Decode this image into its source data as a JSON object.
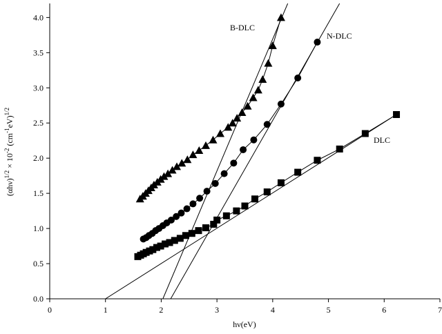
{
  "chart_data": {
    "type": "scatter",
    "x_label": "hν(eV)",
    "y_label": [
      "(αhν)",
      "1/2",
      " × 10",
      "-2",
      " (cm",
      "-1",
      "eV)",
      "1/2"
    ],
    "xlim": [
      0,
      7
    ],
    "ylim": [
      0,
      4.2
    ],
    "xticks": [
      0,
      1,
      2,
      3,
      4,
      5,
      6,
      7
    ],
    "yticks": [
      {
        "value": 0,
        "label": "0.0"
      },
      {
        "value": 0.5,
        "label": "0.5"
      },
      {
        "value": 1,
        "label": "1.0"
      },
      {
        "value": 1.5,
        "label": "1.5"
      },
      {
        "value": 2,
        "label": "2.0"
      },
      {
        "value": 2.5,
        "label": "2.5"
      },
      {
        "value": 3,
        "label": "3.0"
      },
      {
        "value": 3.5,
        "label": "3.5"
      },
      {
        "value": 4,
        "label": "4.0"
      }
    ],
    "series": [
      {
        "name": "B-DLC",
        "color": "#000000",
        "marker": "triangle",
        "x": [
          1.62,
          1.67,
          1.72,
          1.77,
          1.82,
          1.87,
          1.93,
          1.99,
          2.05,
          2.12,
          2.2,
          2.28,
          2.37,
          2.47,
          2.57,
          2.68,
          2.8,
          2.93,
          3.06,
          3.2,
          3.28,
          3.36,
          3.45,
          3.55,
          3.65,
          3.74,
          3.82,
          3.92,
          4.0,
          4.15
        ],
        "values": [
          1.42,
          1.46,
          1.5,
          1.54,
          1.58,
          1.62,
          1.66,
          1.7,
          1.74,
          1.78,
          1.83,
          1.88,
          1.93,
          1.98,
          2.05,
          2.11,
          2.18,
          2.26,
          2.35,
          2.44,
          2.5,
          2.57,
          2.65,
          2.74,
          2.86,
          2.97,
          3.12,
          3.35,
          3.6,
          4.0
        ],
        "fit": {
          "x": [
            2.03,
            4.27
          ],
          "values": [
            0,
            4.2
          ]
        }
      },
      {
        "name": "N-DLC",
        "color": "#000000",
        "marker": "circle",
        "x": [
          1.68,
          1.73,
          1.78,
          1.84,
          1.9,
          1.96,
          2.03,
          2.1,
          2.18,
          2.27,
          2.36,
          2.46,
          2.57,
          2.69,
          2.82,
          2.97,
          3.13,
          3.3,
          3.47,
          3.66,
          3.9,
          4.15,
          4.45,
          4.8
        ],
        "values": [
          0.85,
          0.87,
          0.9,
          0.93,
          0.97,
          1.0,
          1.04,
          1.08,
          1.12,
          1.17,
          1.22,
          1.28,
          1.35,
          1.43,
          1.53,
          1.64,
          1.78,
          1.93,
          2.12,
          2.26,
          2.48,
          2.77,
          3.14,
          3.65
        ],
        "fit": {
          "x": [
            2.17,
            5.2
          ],
          "values": [
            0,
            4.2
          ]
        }
      },
      {
        "name": "DLC",
        "color": "#000000",
        "marker": "square",
        "x": [
          1.58,
          1.63,
          1.68,
          1.73,
          1.79,
          1.85,
          1.92,
          1.99,
          2.07,
          2.15,
          2.24,
          2.34,
          2.44,
          2.55,
          2.67,
          2.8,
          2.94,
          3.0,
          3.17,
          3.35,
          3.5,
          3.68,
          3.9,
          4.15,
          4.45,
          4.8,
          5.2,
          5.66,
          6.22
        ],
        "values": [
          0.6,
          0.62,
          0.64,
          0.66,
          0.68,
          0.7,
          0.73,
          0.75,
          0.78,
          0.8,
          0.83,
          0.86,
          0.9,
          0.93,
          0.97,
          1.01,
          1.06,
          1.12,
          1.18,
          1.25,
          1.32,
          1.42,
          1.52,
          1.65,
          1.8,
          1.97,
          2.13,
          2.35,
          2.62
        ],
        "fit": {
          "x": [
            1.0,
            6.22
          ],
          "values": [
            0,
            2.62
          ]
        }
      }
    ]
  }
}
